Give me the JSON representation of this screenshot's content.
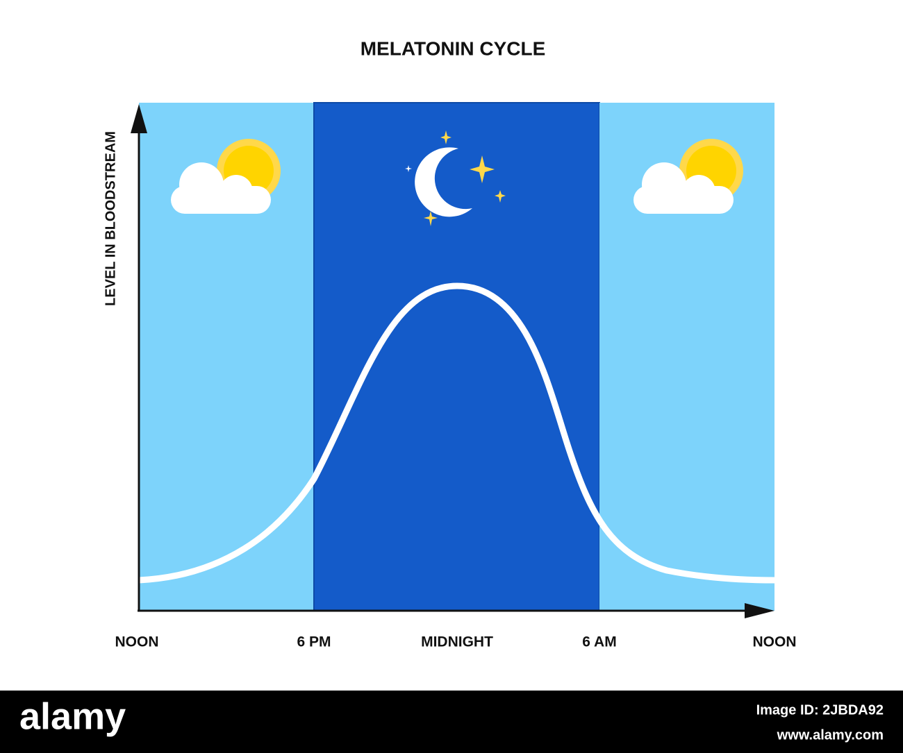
{
  "title": "MELATONIN CYCLE",
  "y_axis_label": "LEVEL IN BLOODSTREAM",
  "x_labels": [
    "NOON",
    "6 PM",
    "MIDNIGHT",
    "6 AM",
    "NOON"
  ],
  "footer": {
    "brand": "alamy",
    "image_id": "Image ID: 2JBDA92",
    "website": "www.alamy.com"
  }
}
